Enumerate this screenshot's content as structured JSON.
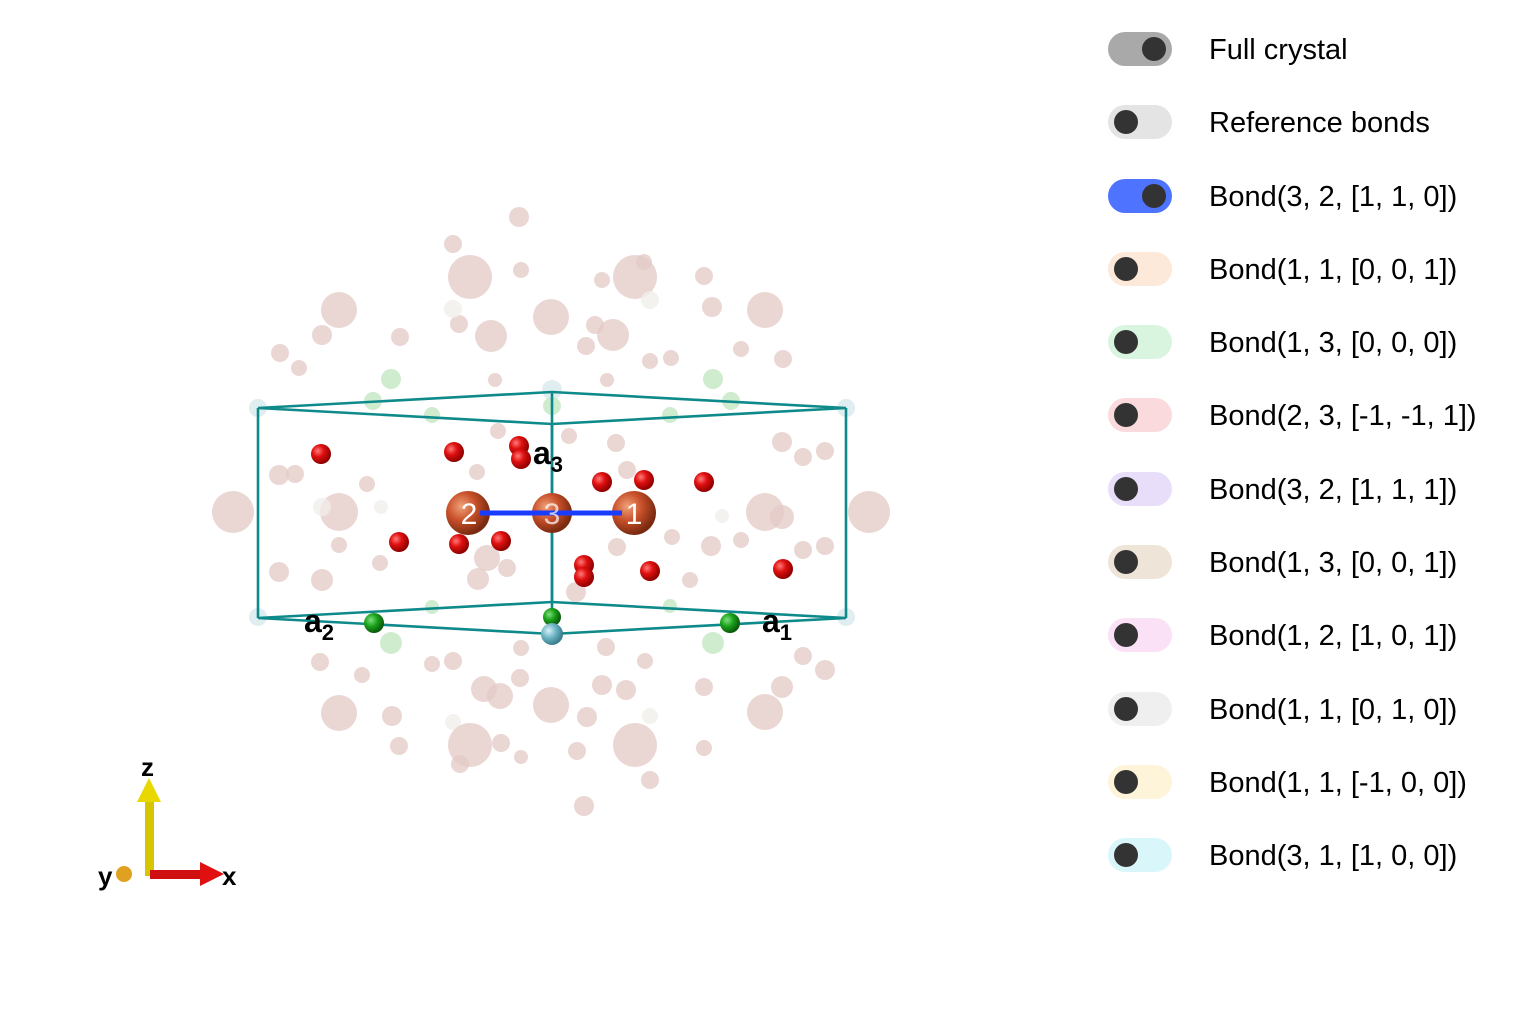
{
  "scene": {
    "axis_labels": {
      "a1": "a",
      "a1_sub": "1",
      "a2": "a",
      "a2_sub": "2",
      "a3": "a",
      "a3_sub": "3"
    },
    "atom_labels": [
      "2",
      "3",
      "1"
    ],
    "triad_labels": {
      "x": "x",
      "y": "y",
      "z": "z"
    },
    "colors": {
      "cell_edge": "#0f8a8a",
      "bond": "#1a3cff",
      "oxygen": "#e01010",
      "cation": "#c8502a",
      "green_site": "#1aa11a",
      "cyan_site": "#6fb6c6"
    }
  },
  "legend": {
    "items": [
      {
        "label": "Full crystal",
        "on": true,
        "color": "#a9a9a9"
      },
      {
        "label": "Reference bonds",
        "on": false,
        "color": "#e4e4e4"
      },
      {
        "label": "Bond(3, 2, [1, 1, 0])",
        "on": true,
        "color": "#4d73ff"
      },
      {
        "label": "Bond(1, 1, [0, 0, 1])",
        "on": false,
        "color": "#fde9d9"
      },
      {
        "label": "Bond(1, 3, [0, 0, 0])",
        "on": false,
        "color": "#d9f5df"
      },
      {
        "label": "Bond(2, 3, [-1, -1, 1])",
        "on": false,
        "color": "#fbdadd"
      },
      {
        "label": "Bond(3, 2, [1, 1, 1])",
        "on": false,
        "color": "#e8defa"
      },
      {
        "label": "Bond(1, 3, [0, 0, 1])",
        "on": false,
        "color": "#efe4d8"
      },
      {
        "label": "Bond(1, 2, [1, 0, 1])",
        "on": false,
        "color": "#fbe1f5"
      },
      {
        "label": "Bond(1, 1, [0, 1, 0])",
        "on": false,
        "color": "#efefef"
      },
      {
        "label": "Bond(1, 1, [-1, 0, 0])",
        "on": false,
        "color": "#fdf4da"
      },
      {
        "label": "Bond(3, 1, [1, 0, 0])",
        "on": false,
        "color": "#d9f7fb"
      }
    ]
  }
}
